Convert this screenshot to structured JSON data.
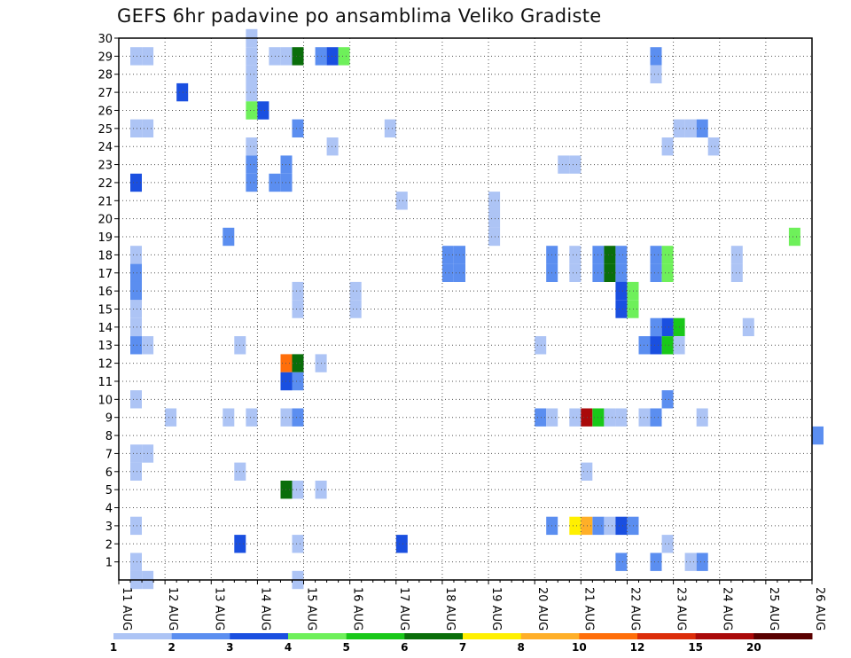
{
  "chart_data": {
    "type": "heatmap",
    "title": "GEFS 6hr padavine po ansamblima Veliko Gradiste",
    "y_categories": [
      "1",
      "2",
      "3",
      "4",
      "5",
      "6",
      "7",
      "8",
      "9",
      "10",
      "11",
      "12",
      "13",
      "14",
      "15",
      "16",
      "17",
      "18",
      "19",
      "20",
      "21",
      "22",
      "23",
      "24",
      "25",
      "26",
      "27",
      "28",
      "29",
      "30"
    ],
    "x_tick_labels": [
      "11 AUG",
      "12 AUG",
      "13 AUG",
      "14 AUG",
      "15 AUG",
      "16 AUG",
      "17 AUG",
      "18 AUG",
      "19 AUG",
      "20 AUG",
      "21 AUG",
      "22 AUG",
      "23 AUG",
      "24 AUG",
      "25 AUG",
      "26 AUG"
    ],
    "time_step_hours": 6,
    "grid": true,
    "legend": {
      "placement": "bottom",
      "boundaries": [
        "1",
        "2",
        "3",
        "4",
        "5",
        "6",
        "7",
        "8",
        "10",
        "12",
        "15",
        "20"
      ],
      "colors": [
        "#adc4f5",
        "#5b8ef0",
        "#1a4fe0",
        "#6ef05a",
        "#19c819",
        "#0a6e0a",
        "#fff000",
        "#ffaf28",
        "#ff6e0a",
        "#dc2d0a",
        "#aa0a0a",
        "#5a0000"
      ]
    },
    "cells": [
      {
        "member": 29,
        "step": 1,
        "c": 0
      },
      {
        "member": 29,
        "step": 2,
        "c": 0
      },
      {
        "member": 29,
        "step": 11,
        "c": 0
      },
      {
        "member": 29,
        "step": 13,
        "c": 0
      },
      {
        "member": 29,
        "step": 14,
        "c": 0
      },
      {
        "member": 29,
        "step": 15,
        "c": 5
      },
      {
        "member": 29,
        "step": 17,
        "c": 1
      },
      {
        "member": 29,
        "step": 18,
        "c": 2
      },
      {
        "member": 29,
        "step": 19,
        "c": 3
      },
      {
        "member": 29,
        "step": 46,
        "c": 1
      },
      {
        "member": 30,
        "step": 11,
        "c": 0
      },
      {
        "member": 28,
        "step": 11,
        "c": 0
      },
      {
        "member": 28,
        "step": 46,
        "c": 0
      },
      {
        "member": 27,
        "step": 5,
        "c": 2
      },
      {
        "member": 27,
        "step": 11,
        "c": 0
      },
      {
        "member": 26,
        "step": 11,
        "c": 3
      },
      {
        "member": 26,
        "step": 12,
        "c": 2
      },
      {
        "member": 25,
        "step": 1,
        "c": 0
      },
      {
        "member": 25,
        "step": 2,
        "c": 0
      },
      {
        "member": 25,
        "step": 15,
        "c": 1
      },
      {
        "member": 25,
        "step": 23,
        "c": 0
      },
      {
        "member": 25,
        "step": 48,
        "c": 0
      },
      {
        "member": 25,
        "step": 49,
        "c": 0
      },
      {
        "member": 25,
        "step": 50,
        "c": 1
      },
      {
        "member": 24,
        "step": 11,
        "c": 0
      },
      {
        "member": 24,
        "step": 18,
        "c": 0
      },
      {
        "member": 24,
        "step": 47,
        "c": 0
      },
      {
        "member": 24,
        "step": 51,
        "c": 0
      },
      {
        "member": 23,
        "step": 11,
        "c": 1
      },
      {
        "member": 23,
        "step": 14,
        "c": 1
      },
      {
        "member": 23,
        "step": 38,
        "c": 0
      },
      {
        "member": 23,
        "step": 39,
        "c": 0
      },
      {
        "member": 22,
        "step": 1,
        "c": 2
      },
      {
        "member": 22,
        "step": 11,
        "c": 1
      },
      {
        "member": 22,
        "step": 13,
        "c": 1
      },
      {
        "member": 22,
        "step": 14,
        "c": 1
      },
      {
        "member": 21,
        "step": 24,
        "c": 0
      },
      {
        "member": 21,
        "step": 32,
        "c": 0
      },
      {
        "member": 20,
        "step": 32,
        "c": 0
      },
      {
        "member": 19,
        "step": 9,
        "c": 1
      },
      {
        "member": 19,
        "step": 32,
        "c": 0
      },
      {
        "member": 19,
        "step": 58,
        "c": 3
      },
      {
        "member": 18,
        "step": 1,
        "c": 0
      },
      {
        "member": 18,
        "step": 28,
        "c": 1
      },
      {
        "member": 18,
        "step": 29,
        "c": 1
      },
      {
        "member": 18,
        "step": 37,
        "c": 1
      },
      {
        "member": 18,
        "step": 39,
        "c": 0
      },
      {
        "member": 18,
        "step": 41,
        "c": 1
      },
      {
        "member": 18,
        "step": 42,
        "c": 5
      },
      {
        "member": 18,
        "step": 43,
        "c": 1
      },
      {
        "member": 18,
        "step": 46,
        "c": 1
      },
      {
        "member": 18,
        "step": 47,
        "c": 3
      },
      {
        "member": 18,
        "step": 53,
        "c": 0
      },
      {
        "member": 17,
        "step": 1,
        "c": 1
      },
      {
        "member": 17,
        "step": 28,
        "c": 1
      },
      {
        "member": 17,
        "step": 29,
        "c": 1
      },
      {
        "member": 17,
        "step": 37,
        "c": 1
      },
      {
        "member": 17,
        "step": 39,
        "c": 0
      },
      {
        "member": 17,
        "step": 41,
        "c": 1
      },
      {
        "member": 17,
        "step": 42,
        "c": 5
      },
      {
        "member": 17,
        "step": 43,
        "c": 1
      },
      {
        "member": 17,
        "step": 46,
        "c": 1
      },
      {
        "member": 17,
        "step": 47,
        "c": 3
      },
      {
        "member": 17,
        "step": 53,
        "c": 0
      },
      {
        "member": 16,
        "step": 1,
        "c": 1
      },
      {
        "member": 16,
        "step": 15,
        "c": 0
      },
      {
        "member": 16,
        "step": 20,
        "c": 0
      },
      {
        "member": 16,
        "step": 43,
        "c": 2
      },
      {
        "member": 16,
        "step": 44,
        "c": 3
      },
      {
        "member": 15,
        "step": 1,
        "c": 0
      },
      {
        "member": 15,
        "step": 15,
        "c": 0
      },
      {
        "member": 15,
        "step": 20,
        "c": 0
      },
      {
        "member": 15,
        "step": 43,
        "c": 2
      },
      {
        "member": 15,
        "step": 44,
        "c": 3
      },
      {
        "member": 14,
        "step": 1,
        "c": 0
      },
      {
        "member": 14,
        "step": 54,
        "c": 0
      },
      {
        "member": 14,
        "step": 46,
        "c": 1
      },
      {
        "member": 14,
        "step": 47,
        "c": 2
      },
      {
        "member": 14,
        "step": 48,
        "c": 4
      },
      {
        "member": 13,
        "step": 1,
        "c": 1
      },
      {
        "member": 13,
        "step": 2,
        "c": 0
      },
      {
        "member": 13,
        "step": 10,
        "c": 0
      },
      {
        "member": 13,
        "step": 36,
        "c": 0
      },
      {
        "member": 13,
        "step": 45,
        "c": 1
      },
      {
        "member": 13,
        "step": 46,
        "c": 2
      },
      {
        "member": 13,
        "step": 47,
        "c": 4
      },
      {
        "member": 13,
        "step": 48,
        "c": 0
      },
      {
        "member": 12,
        "step": 14,
        "c": 8
      },
      {
        "member": 12,
        "step": 15,
        "c": 5
      },
      {
        "member": 12,
        "step": 17,
        "c": 0
      },
      {
        "member": 11,
        "step": 14,
        "c": 2
      },
      {
        "member": 11,
        "step": 15,
        "c": 1
      },
      {
        "member": 10,
        "step": 1,
        "c": 0
      },
      {
        "member": 10,
        "step": 47,
        "c": 1
      },
      {
        "member": 9,
        "step": 4,
        "c": 0
      },
      {
        "member": 9,
        "step": 9,
        "c": 0
      },
      {
        "member": 9,
        "step": 11,
        "c": 0
      },
      {
        "member": 9,
        "step": 14,
        "c": 0
      },
      {
        "member": 9,
        "step": 15,
        "c": 1
      },
      {
        "member": 9,
        "step": 36,
        "c": 1
      },
      {
        "member": 9,
        "step": 37,
        "c": 0
      },
      {
        "member": 9,
        "step": 39,
        "c": 0
      },
      {
        "member": 9,
        "step": 40,
        "c": 10
      },
      {
        "member": 9,
        "step": 41,
        "c": 4
      },
      {
        "member": 9,
        "step": 42,
        "c": 0
      },
      {
        "member": 9,
        "step": 43,
        "c": 0
      },
      {
        "member": 9,
        "step": 45,
        "c": 0
      },
      {
        "member": 9,
        "step": 46,
        "c": 1
      },
      {
        "member": 9,
        "step": 50,
        "c": 0
      },
      {
        "member": 8,
        "step": 60,
        "c": 1
      },
      {
        "member": 7,
        "step": 1,
        "c": 0
      },
      {
        "member": 7,
        "step": 2,
        "c": 0
      },
      {
        "member": 6,
        "step": 1,
        "c": 0
      },
      {
        "member": 6,
        "step": 10,
        "c": 0
      },
      {
        "member": 6,
        "step": 40,
        "c": 0
      },
      {
        "member": 5,
        "step": 14,
        "c": 5
      },
      {
        "member": 5,
        "step": 15,
        "c": 0
      },
      {
        "member": 5,
        "step": 17,
        "c": 0
      },
      {
        "member": 3,
        "step": 1,
        "c": 0
      },
      {
        "member": 3,
        "step": 37,
        "c": 1
      },
      {
        "member": 3,
        "step": 39,
        "c": 6
      },
      {
        "member": 3,
        "step": 40,
        "c": 7
      },
      {
        "member": 3,
        "step": 41,
        "c": 1
      },
      {
        "member": 3,
        "step": 42,
        "c": 0
      },
      {
        "member": 3,
        "step": 43,
        "c": 2
      },
      {
        "member": 3,
        "step": 44,
        "c": 1
      },
      {
        "member": 2,
        "step": 10,
        "c": 2
      },
      {
        "member": 2,
        "step": 15,
        "c": 0
      },
      {
        "member": 2,
        "step": 24,
        "c": 2
      },
      {
        "member": 2,
        "step": 47,
        "c": 0
      },
      {
        "member": 1,
        "step": 1,
        "c": 0
      },
      {
        "member": 1,
        "step": 43,
        "c": 1
      },
      {
        "member": 1,
        "step": 46,
        "c": 1
      },
      {
        "member": 1,
        "step": 49,
        "c": 0
      },
      {
        "member": 1,
        "step": 50,
        "c": 1
      },
      {
        "member": 0,
        "step": 1,
        "c": 0
      },
      {
        "member": 0,
        "step": 2,
        "c": 0
      },
      {
        "member": 0,
        "step": 15,
        "c": 0
      }
    ]
  }
}
